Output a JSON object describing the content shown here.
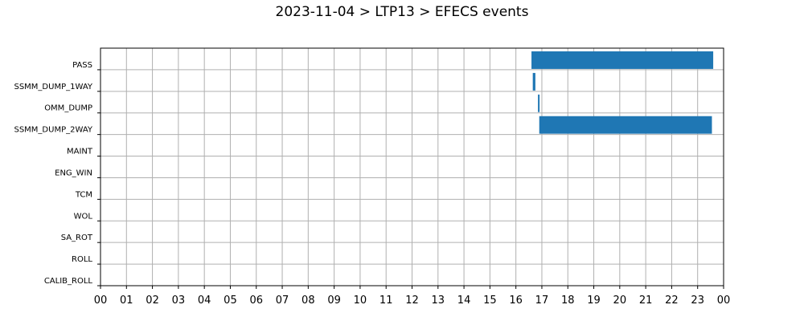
{
  "chart_data": {
    "type": "bar",
    "orientation": "horizontal-timeline",
    "title": "2023-11-04 > LTP13 > EFECS events",
    "xlabel": "",
    "ylabel": "",
    "xlim": [
      0,
      24
    ],
    "x_ticks": [
      "00",
      "01",
      "02",
      "03",
      "04",
      "05",
      "06",
      "07",
      "08",
      "09",
      "10",
      "11",
      "12",
      "13",
      "14",
      "15",
      "16",
      "17",
      "18",
      "19",
      "20",
      "21",
      "22",
      "23",
      "00"
    ],
    "categories": [
      "PASS",
      "SSMM_DUMP_1WAY",
      "OMM_DUMP",
      "SSMM_DUMP_2WAY",
      "MAINT",
      "ENG_WIN",
      "TCM",
      "WOL",
      "SA_ROT",
      "ROLL",
      "CALIB_ROLL"
    ],
    "grid": true,
    "bar_color": "#1f77b4",
    "events": [
      {
        "category": "PASS",
        "start": 16.6,
        "end": 23.6
      },
      {
        "category": "SSMM_DUMP_1WAY",
        "start": 16.65,
        "end": 16.75
      },
      {
        "category": "OMM_DUMP",
        "start": 16.85,
        "end": 16.9
      },
      {
        "category": "SSMM_DUMP_2WAY",
        "start": 16.9,
        "end": 23.55
      }
    ]
  }
}
